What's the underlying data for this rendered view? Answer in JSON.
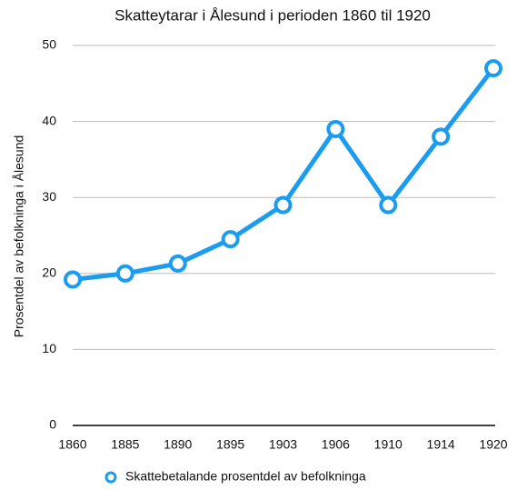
{
  "chart_data": {
    "type": "line",
    "title": "Skatteytarar i Ålesund i perioden 1860 til 1920",
    "y_label": "Prosentdel av befolkninga i Ålesund",
    "categories": [
      "1860",
      "1885",
      "1890",
      "1895",
      "1903",
      "1906",
      "1910",
      "1914",
      "1920"
    ],
    "series": [
      {
        "name": "Skattebetalande prosentdel av befolkninga",
        "color": "#1a9cf0",
        "values": [
          19.2,
          20.0,
          21.3,
          24.5,
          29,
          39,
          29,
          38,
          47
        ]
      }
    ],
    "ylim": [
      0,
      50
    ],
    "yticks": [
      0,
      10,
      20,
      30,
      40,
      50
    ],
    "grid": true,
    "legend": "bottom"
  }
}
